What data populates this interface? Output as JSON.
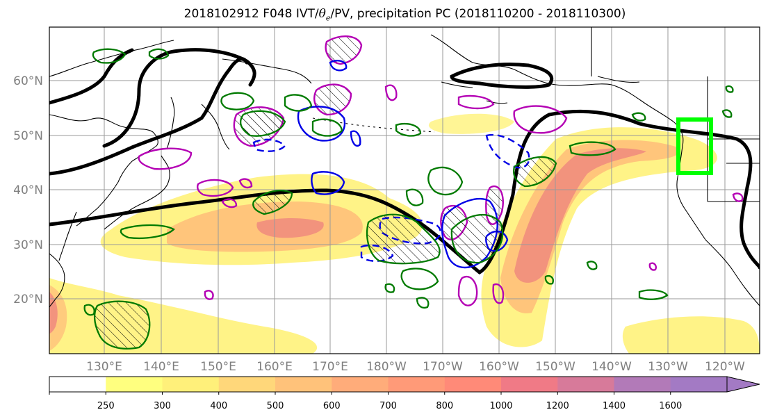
{
  "title": {
    "prefix": "2018102912 F048 IVT/",
    "theta": "θ",
    "theta_sub": "e",
    "suffix": "/PV, precipitation PC (2018110200 - 2018110300)"
  },
  "lat_labels": [
    "60°N",
    "50°N",
    "40°N",
    "30°N",
    "20°N"
  ],
  "lon_labels": [
    "130°E",
    "140°E",
    "150°E",
    "160°E",
    "170°E",
    "180°W",
    "170°W",
    "160°W",
    "150°W",
    "140°W",
    "130°W",
    "120°W"
  ],
  "colorbar": {
    "levels": [
      "250",
      "300",
      "400",
      "500",
      "600",
      "700",
      "800",
      "1000",
      "1200",
      "1400",
      "1600"
    ],
    "colors": [
      "#ffffff",
      "#ffff7f",
      "#fff07a",
      "#ffd77a",
      "#ffc27a",
      "#ffac7a",
      "#ff9a78",
      "#ff8a78",
      "#f07a86",
      "#d77a9a",
      "#b27ab8",
      "#a37ac4"
    ]
  },
  "colors": {
    "ivt_low": "#fff27a",
    "ivt_mid": "#ffc07a",
    "ivt_high": "#f08a7e",
    "theta_e_contour": "#000000",
    "positive_pv": "#b400b4",
    "negative_pv_solid": "#0000e6",
    "precip_contour": "#007a00",
    "target_box": "#00ff00"
  }
}
